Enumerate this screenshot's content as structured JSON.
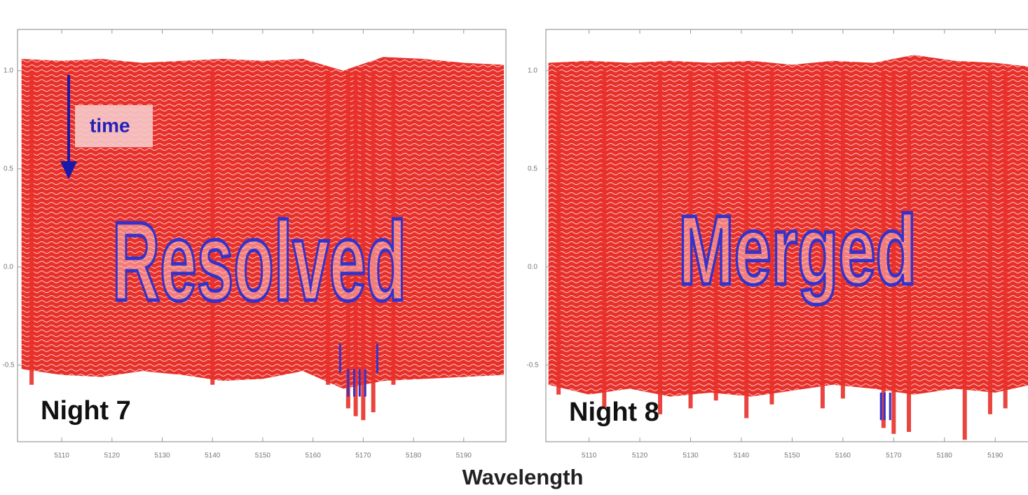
{
  "xlabel": "Wavelength",
  "chart_data": [
    {
      "type": "area",
      "color": "#e8302a",
      "title": "Night 7",
      "annotation": "Resolved",
      "arrow_label": "time",
      "xlim": [
        5101.2,
        5198.4
      ],
      "ylim": [
        -0.89,
        1.21
      ],
      "xticks": [
        5110,
        5120,
        5130,
        5140,
        5150,
        5160,
        5170,
        5180,
        5190
      ],
      "yticks": [
        {
          "value": 1,
          "label": "1.0"
        },
        0.5,
        {
          "value": 0,
          "label": "0.0"
        },
        -0.5
      ],
      "x": [
        5102,
        5110,
        5118,
        5126,
        5134,
        5142,
        5150,
        5158,
        5166,
        5174,
        5182,
        5190,
        5198
      ],
      "top": [
        1.06,
        1.05,
        1.06,
        1.04,
        1.05,
        1.06,
        1.05,
        1.06,
        1.0,
        1.07,
        1.06,
        1.04,
        1.03
      ],
      "bottom": [
        -0.52,
        -0.55,
        -0.56,
        -0.53,
        -0.55,
        -0.58,
        -0.57,
        -0.53,
        -0.62,
        -0.58,
        -0.57,
        -0.56,
        -0.55
      ],
      "lines_x": [
        5104,
        5140,
        5163,
        5167,
        5168.5,
        5170,
        5172,
        5176
      ],
      "lines_min": [
        -0.6,
        -0.6,
        -0.6,
        -0.72,
        -0.76,
        -0.78,
        -0.74,
        -0.6
      ],
      "markers": [
        {
          "x": 5165.4,
          "y0": -0.39,
          "y1": -0.54
        },
        {
          "x": 5172.8,
          "y0": -0.39,
          "y1": -0.54
        },
        {
          "x": 5167.0,
          "y0": -0.52,
          "y1": -0.66
        },
        {
          "x": 5168.2,
          "y0": -0.52,
          "y1": -0.66
        },
        {
          "x": 5169.3,
          "y0": -0.52,
          "y1": -0.66
        },
        {
          "x": 5170.4,
          "y0": -0.52,
          "y1": -0.66
        }
      ],
      "marker_color": "#3333cc"
    },
    {
      "type": "area",
      "color": "#e8302a",
      "title": "Night 8",
      "annotation": "Merged",
      "xlim": [
        5101.5,
        5197.7
      ],
      "ylim": [
        -0.89,
        1.21
      ],
      "xticks": [
        5110,
        5120,
        5130,
        5140,
        5150,
        5160,
        5170,
        5180,
        5190
      ],
      "yticks": [
        {
          "value": 1,
          "label": "1.0"
        },
        0.5,
        {
          "value": 0,
          "label": "0.0"
        },
        -0.5
      ],
      "x": [
        5102,
        5110,
        5118,
        5126,
        5134,
        5142,
        5150,
        5158,
        5166,
        5174,
        5182,
        5190,
        5197
      ],
      "top": [
        1.04,
        1.05,
        1.04,
        1.05,
        1.04,
        1.05,
        1.03,
        1.05,
        1.04,
        1.08,
        1.05,
        1.04,
        1.02
      ],
      "bottom": [
        -0.6,
        -0.65,
        -0.62,
        -0.66,
        -0.64,
        -0.66,
        -0.63,
        -0.6,
        -0.62,
        -0.65,
        -0.62,
        -0.64,
        -0.6
      ],
      "lines_x": [
        5104,
        5113,
        5124,
        5130,
        5135,
        5141,
        5146,
        5156,
        5160,
        5168,
        5170,
        5173,
        5184,
        5189,
        5192
      ],
      "lines_min": [
        -0.65,
        -0.72,
        -0.75,
        -0.72,
        -0.68,
        -0.77,
        -0.7,
        -0.72,
        -0.67,
        -0.82,
        -0.85,
        -0.84,
        -0.88,
        -0.75,
        -0.72
      ],
      "markers": [
        {
          "x": 5167.5,
          "y0": -0.64,
          "y1": -0.78
        },
        {
          "x": 5168.2,
          "y0": -0.64,
          "y1": -0.78
        },
        {
          "x": 5169.3,
          "y0": -0.64,
          "y1": -0.78
        }
      ],
      "marker_color": "#3333cc"
    }
  ]
}
